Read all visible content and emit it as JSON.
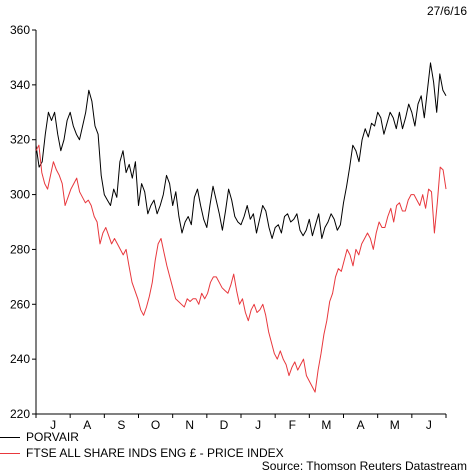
{
  "date_label": "27/6/16",
  "source_label": "Source: Thomson Reuters Datastream",
  "chart_data": {
    "type": "line",
    "title": "",
    "xlabel": "",
    "ylabel": "",
    "ylim": [
      220,
      360
    ],
    "yticks": [
      220,
      240,
      260,
      280,
      300,
      320,
      340,
      360
    ],
    "xticks": [
      "J",
      "A",
      "S",
      "O",
      "N",
      "D",
      "J",
      "F",
      "M",
      "A",
      "M",
      "J"
    ],
    "legend_position": "bottom-left",
    "grid": false,
    "series": [
      {
        "name": "PORVAIR",
        "color": "#000000",
        "values": [
          318,
          310,
          312,
          322,
          330,
          327,
          330,
          322,
          316,
          320,
          327,
          330,
          325,
          322,
          320,
          325,
          330,
          338,
          334,
          325,
          322,
          307,
          300,
          298,
          296,
          302,
          299,
          312,
          316,
          308,
          311,
          306,
          312,
          296,
          304,
          301,
          293,
          296,
          298,
          293,
          296,
          300,
          307,
          304,
          296,
          301,
          292,
          286,
          290,
          292,
          289,
          299,
          302,
          296,
          291,
          288,
          296,
          303,
          298,
          293,
          287,
          294,
          302,
          298,
          292,
          290,
          289,
          292,
          296,
          291,
          293,
          286,
          291,
          296,
          294,
          288,
          284,
          288,
          289,
          286,
          292,
          293,
          290,
          291,
          293,
          287,
          285,
          287,
          291,
          285,
          289,
          293,
          284,
          288,
          290,
          293,
          291,
          287,
          289,
          297,
          303,
          310,
          318,
          316,
          312,
          320,
          324,
          321,
          326,
          325,
          330,
          328,
          322,
          326,
          330,
          328,
          324,
          330,
          324,
          328,
          333,
          330,
          325,
          333,
          336,
          328,
          338,
          348,
          341,
          330,
          344,
          338,
          336
        ]
      },
      {
        "name": "FTSE ALL SHARE INDS ENG £ - PRICE INDEX",
        "color": "#e8383d",
        "values": [
          316,
          318,
          308,
          304,
          302,
          307,
          312,
          309,
          307,
          304,
          296,
          299,
          302,
          304,
          306,
          301,
          299,
          297,
          298,
          296,
          292,
          290,
          282,
          286,
          288,
          285,
          282,
          284,
          282,
          280,
          278,
          280,
          274,
          268,
          265,
          262,
          258,
          256,
          259,
          263,
          268,
          276,
          282,
          284,
          279,
          274,
          270,
          266,
          262,
          261,
          260,
          259,
          262,
          261,
          262,
          262,
          260,
          264,
          262,
          264,
          268,
          270,
          270,
          268,
          266,
          265,
          264,
          267,
          271,
          265,
          260,
          262,
          257,
          254,
          258,
          260,
          257,
          258,
          260,
          256,
          250,
          246,
          242,
          240,
          243,
          240,
          238,
          234,
          237,
          239,
          236,
          238,
          240,
          234,
          232,
          230,
          228,
          236,
          242,
          249,
          254,
          261,
          264,
          270,
          273,
          272,
          276,
          280,
          278,
          274,
          280,
          278,
          282,
          284,
          286,
          284,
          280,
          286,
          290,
          288,
          288,
          292,
          295,
          290,
          296,
          297,
          294,
          294,
          298,
          300,
          300,
          298,
          296,
          300,
          295,
          302,
          301,
          286,
          297,
          310,
          309,
          302
        ]
      }
    ]
  }
}
